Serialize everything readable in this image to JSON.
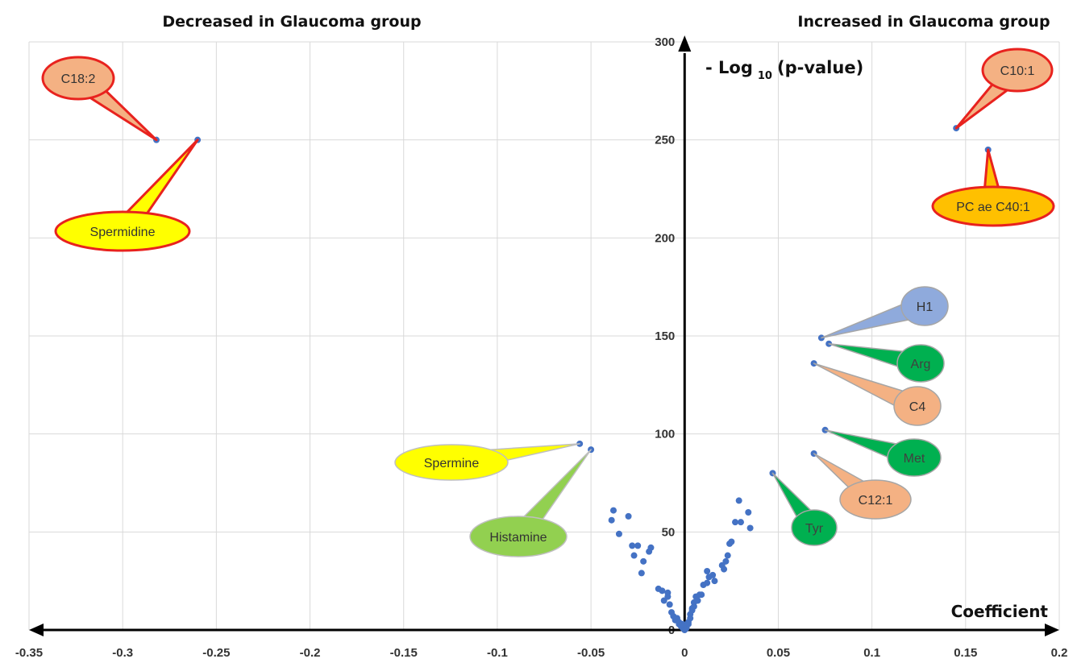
{
  "header": {
    "left_title": "Decreased in Glaucoma group",
    "right_title": "Increased in Glaucoma group"
  },
  "chart_data": {
    "type": "scatter",
    "xlabel": "Coefficient",
    "ylabel_prefix": "- Log",
    "ylabel_sub": "10",
    "ylabel_suffix": "(p-value)",
    "xlim": [
      -0.35,
      0.2
    ],
    "ylim": [
      0,
      300
    ],
    "x_ticks": [
      "-0.35",
      "-0.3",
      "-0.25",
      "-0.2",
      "-0.15",
      "-0.1",
      "-0.05",
      "0",
      "0.05",
      "0.1",
      "0.15",
      "0.2"
    ],
    "x_tick_values": [
      -0.35,
      -0.3,
      -0.25,
      -0.2,
      -0.15,
      -0.1,
      -0.05,
      0,
      0.05,
      0.1,
      0.15,
      0.2
    ],
    "y_ticks": [
      "0",
      "50",
      "100",
      "150",
      "200",
      "250",
      "300"
    ],
    "y_tick_values": [
      0,
      50,
      100,
      150,
      200,
      250,
      300
    ],
    "grid": true,
    "point_color": "#4472c4",
    "labeled_points": [
      {
        "label": "C18:2",
        "x": -0.282,
        "y": 250,
        "fill": "#f4b183",
        "stroke": "#e8221e",
        "side": "above"
      },
      {
        "label": "Spermidine",
        "x": -0.26,
        "y": 250,
        "fill": "#ffff00",
        "stroke": "#e8221e",
        "side": "below"
      },
      {
        "label": "C10:1",
        "x": 0.145,
        "y": 256,
        "fill": "#f4b183",
        "stroke": "#e8221e",
        "side": "above"
      },
      {
        "label": "PC ae C40:1",
        "x": 0.162,
        "y": 245,
        "fill": "#ffc000",
        "stroke": "#e8221e",
        "side": "below"
      },
      {
        "label": "H1",
        "x": 0.073,
        "y": 149,
        "fill": "#8faadc",
        "stroke": "#a6a6a6",
        "side": "right"
      },
      {
        "label": "Arg",
        "x": 0.077,
        "y": 146,
        "fill": "#00b050",
        "stroke": "#a6a6a6",
        "side": "right"
      },
      {
        "label": "C4",
        "x": 0.069,
        "y": 136,
        "fill": "#f4b183",
        "stroke": "#a6a6a6",
        "side": "right"
      },
      {
        "label": "Met",
        "x": 0.075,
        "y": 102,
        "fill": "#00b050",
        "stroke": "#a6a6a6",
        "side": "right"
      },
      {
        "label": "C12:1",
        "x": 0.069,
        "y": 90,
        "fill": "#f4b183",
        "stroke": "#a6a6a6",
        "side": "right"
      },
      {
        "label": "Tyr",
        "x": 0.047,
        "y": 80,
        "fill": "#00b050",
        "stroke": "#a6a6a6",
        "side": "right"
      },
      {
        "label": "Spermine",
        "x": -0.056,
        "y": 95,
        "fill": "#ffff00",
        "stroke": "#bfbfbf",
        "side": "left"
      },
      {
        "label": "Histamine",
        "x": -0.05,
        "y": 92,
        "fill": "#92d050",
        "stroke": "#bfbfbf",
        "side": "left"
      }
    ],
    "points": [
      [
        -0.038,
        61
      ],
      [
        -0.039,
        56
      ],
      [
        -0.035,
        49
      ],
      [
        -0.03,
        58
      ],
      [
        -0.028,
        43
      ],
      [
        -0.027,
        38
      ],
      [
        -0.025,
        43
      ],
      [
        -0.023,
        29
      ],
      [
        -0.022,
        35
      ],
      [
        -0.019,
        40
      ],
      [
        -0.018,
        42
      ],
      [
        -0.014,
        21
      ],
      [
        -0.012,
        20
      ],
      [
        -0.011,
        15
      ],
      [
        -0.009,
        17
      ],
      [
        -0.009,
        19
      ],
      [
        -0.008,
        13
      ],
      [
        -0.007,
        9
      ],
      [
        -0.006,
        7
      ],
      [
        -0.005,
        5
      ],
      [
        -0.004,
        6
      ],
      [
        -0.003,
        4
      ],
      [
        -0.003,
        3
      ],
      [
        -0.002,
        2
      ],
      [
        -0.001,
        1
      ],
      [
        -0.001,
        3
      ],
      [
        0.0,
        0
      ],
      [
        0.001,
        1
      ],
      [
        0.001,
        2
      ],
      [
        0.002,
        4
      ],
      [
        0.002,
        3
      ],
      [
        0.003,
        6
      ],
      [
        0.003,
        8
      ],
      [
        0.004,
        10
      ],
      [
        0.004,
        11
      ],
      [
        0.005,
        12
      ],
      [
        0.005,
        14
      ],
      [
        0.006,
        17
      ],
      [
        0.007,
        15
      ],
      [
        0.008,
        18
      ],
      [
        0.009,
        18
      ],
      [
        0.01,
        23
      ],
      [
        0.012,
        30
      ],
      [
        0.012,
        24
      ],
      [
        0.013,
        27
      ],
      [
        0.015,
        28
      ],
      [
        0.016,
        25
      ],
      [
        0.02,
        33
      ],
      [
        0.021,
        31
      ],
      [
        0.022,
        35
      ],
      [
        0.023,
        38
      ],
      [
        0.024,
        44
      ],
      [
        0.025,
        45
      ],
      [
        0.027,
        55
      ],
      [
        0.029,
        66
      ],
      [
        0.03,
        55
      ],
      [
        0.034,
        60
      ],
      [
        0.035,
        52
      ]
    ]
  }
}
